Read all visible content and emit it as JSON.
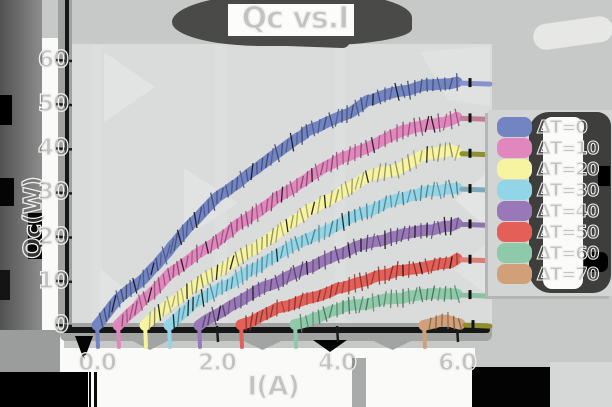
{
  "title": "Qc vs.I",
  "colors": {
    "background": "#c7c9c8",
    "panel": "#d9dcdb",
    "paper_white": "#fafaf8",
    "ink_black": "#161616",
    "smudge_dark": "#4a4a48",
    "legend_dark": "#3e3e3c"
  },
  "chart_data": {
    "type": "line",
    "title": "Qc vs.I",
    "xlabel": "I(A)",
    "ylabel": "Qc(W)",
    "xlim": [
      0,
      6.6
    ],
    "ylim": [
      0,
      60
    ],
    "grid": false,
    "legend_position": "right",
    "xticks": [
      0.0,
      2.0,
      4.0,
      6.0
    ],
    "xtick_labels": [
      "0.0",
      "2.0",
      "4.0",
      "6.0"
    ],
    "yticks": [
      0,
      10,
      20,
      30,
      40,
      50,
      60
    ],
    "ytick_labels": [
      "0",
      "10",
      "20",
      "30",
      "40",
      "50",
      "60"
    ],
    "series": [
      {
        "name": "ΔT=0",
        "color": "#7284c2",
        "cap_color": "#8a92cc",
        "points": [
          [
            0,
            0
          ],
          [
            0.35,
            5
          ],
          [
            0.7,
            9
          ],
          [
            1,
            13
          ],
          [
            1.5,
            21
          ],
          [
            2,
            28
          ],
          [
            2.5,
            33
          ],
          [
            3,
            38
          ],
          [
            3.5,
            43
          ],
          [
            4,
            46
          ],
          [
            4.5,
            50
          ],
          [
            5,
            52
          ],
          [
            5.5,
            54
          ],
          [
            6,
            55
          ]
        ]
      },
      {
        "name": "ΔT=10",
        "color": "#e287bd",
        "cap_color": "#bd7f96",
        "points": [
          [
            0.35,
            0
          ],
          [
            0.8,
            6
          ],
          [
            1.2,
            11
          ],
          [
            1.5,
            14
          ],
          [
            2,
            19
          ],
          [
            2.5,
            24
          ],
          [
            3,
            29
          ],
          [
            3.5,
            34
          ],
          [
            4,
            38
          ],
          [
            4.5,
            41
          ],
          [
            5,
            44
          ],
          [
            5.5,
            46
          ],
          [
            6,
            47
          ]
        ]
      },
      {
        "name": "ΔT=20",
        "color": "#f6f3a1",
        "cap_color": "#8f8f2e",
        "points": [
          [
            0.8,
            0
          ],
          [
            1.2,
            5
          ],
          [
            1.5,
            8
          ],
          [
            2,
            12
          ],
          [
            2.5,
            17
          ],
          [
            3,
            21
          ],
          [
            3.5,
            26
          ],
          [
            4,
            29
          ],
          [
            4.5,
            33
          ],
          [
            5,
            35
          ],
          [
            5.5,
            38
          ],
          [
            6,
            39
          ]
        ]
      },
      {
        "name": "ΔT=30",
        "color": "#92d5e6",
        "cap_color": "#7fa9b4",
        "points": [
          [
            1.2,
            0
          ],
          [
            1.6,
            4
          ],
          [
            2,
            7
          ],
          [
            2.5,
            11
          ],
          [
            3,
            15
          ],
          [
            3.5,
            19
          ],
          [
            4,
            22
          ],
          [
            4.5,
            25
          ],
          [
            5,
            28
          ],
          [
            5.5,
            30
          ],
          [
            6,
            31
          ]
        ]
      },
      {
        "name": "ΔT=40",
        "color": "#9878b6",
        "cap_color": "#8f74ab",
        "points": [
          [
            1.7,
            0
          ],
          [
            2.2,
            4
          ],
          [
            2.5,
            6
          ],
          [
            3,
            9
          ],
          [
            3.5,
            12
          ],
          [
            4,
            15
          ],
          [
            4.5,
            18
          ],
          [
            5,
            20
          ],
          [
            5.5,
            22
          ],
          [
            6,
            23
          ]
        ]
      },
      {
        "name": "ΔT=50",
        "color": "#e45f57",
        "cap_color": "#dd7d78",
        "points": [
          [
            2.4,
            0
          ],
          [
            3,
            4
          ],
          [
            3.5,
            6.5
          ],
          [
            4,
            9
          ],
          [
            4.5,
            11
          ],
          [
            5,
            13
          ],
          [
            5.5,
            14
          ],
          [
            6,
            15
          ]
        ]
      },
      {
        "name": "ΔT=60",
        "color": "#8ecaa9",
        "cap_color": "#8dbfa3",
        "points": [
          [
            3.3,
            0
          ],
          [
            3.8,
            2
          ],
          [
            4.2,
            3.5
          ],
          [
            4.6,
            4.5
          ],
          [
            5,
            5.5
          ],
          [
            5.5,
            6.5
          ],
          [
            6,
            7
          ]
        ]
      },
      {
        "name": "ΔT=70",
        "color": "#d2a078",
        "cap_color": "#8f8f2e",
        "points": [
          [
            5.45,
            0
          ],
          [
            5.75,
            1
          ],
          [
            6.05,
            0.2
          ]
        ]
      }
    ]
  }
}
